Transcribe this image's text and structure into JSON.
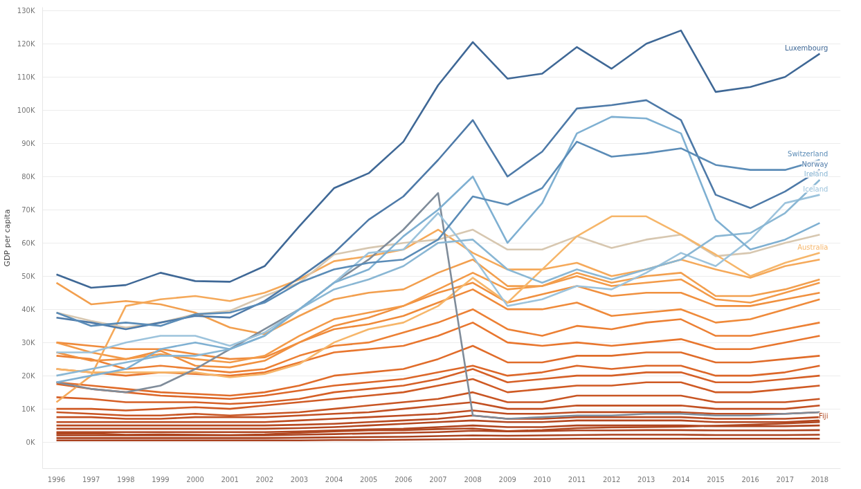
{
  "chart_data": {
    "type": "line",
    "ylabel": "GDP per capita",
    "grid": "y",
    "marker": "none",
    "line_style": "solid",
    "x": [
      1996,
      1997,
      1998,
      1999,
      2000,
      2001,
      2002,
      2003,
      2004,
      2005,
      2006,
      2007,
      2008,
      2009,
      2010,
      2011,
      2012,
      2013,
      2014,
      2015,
      2016,
      2017,
      2018
    ],
    "xlim": [
      1995.6,
      2018.6
    ],
    "xticks": [
      1996,
      1997,
      1998,
      1999,
      2000,
      2001,
      2002,
      2003,
      2004,
      2005,
      2006,
      2007,
      2008,
      2009,
      2010,
      2011,
      2012,
      2013,
      2014,
      2015,
      2016,
      2017,
      2018
    ],
    "ylim": [
      -8000,
      131000
    ],
    "yticks": [
      {
        "value": 0,
        "label": "0K"
      },
      {
        "value": 10000,
        "label": "10K"
      },
      {
        "value": 20000,
        "label": "20K"
      },
      {
        "value": 30000,
        "label": "30K"
      },
      {
        "value": 40000,
        "label": "40K"
      },
      {
        "value": 50000,
        "label": "50K"
      },
      {
        "value": 60000,
        "label": "60K"
      },
      {
        "value": 70000,
        "label": "70K"
      },
      {
        "value": 80000,
        "label": "80K"
      },
      {
        "value": 90000,
        "label": "90K"
      },
      {
        "value": 100000,
        "label": "100K"
      },
      {
        "value": 110000,
        "label": "110K"
      },
      {
        "value": 120000,
        "label": "120K"
      },
      {
        "value": 130000,
        "label": "130K"
      }
    ],
    "series": [
      {
        "color": "#a8401e",
        "values": [
          500,
          500,
          500,
          500,
          500,
          500,
          500,
          500,
          600,
          600,
          700,
          800,
          900,
          900,
          900,
          1000,
          1000,
          1000,
          1000,
          1000,
          1000,
          1000,
          1000
        ]
      },
      {
        "color": "#aa421e",
        "values": [
          1200,
          1200,
          1200,
          1200,
          1200,
          1200,
          1200,
          1300,
          1400,
          1500,
          1600,
          1800,
          2000,
          1900,
          2000,
          2100,
          2200,
          2200,
          2200,
          2100,
          2100,
          2100,
          2200
        ]
      },
      {
        "color": "#ad431f",
        "values": [
          2000,
          2000,
          2000,
          2000,
          2000,
          2000,
          2000,
          2200,
          2400,
          2600,
          2800,
          3000,
          3400,
          3200,
          3300,
          3500,
          3500,
          3600,
          3600,
          3500,
          3500,
          3500,
          3600
        ]
      },
      {
        "color": "#b0451f",
        "values": [
          3000,
          3000,
          3000,
          3000,
          3000,
          3000,
          3000,
          3200,
          3500,
          3800,
          4000,
          4500,
          5000,
          4500,
          4500,
          5000,
          5000,
          5000,
          5000,
          4800,
          4800,
          4800,
          5000
        ]
      },
      {
        "color": "#b34720",
        "values": [
          4000,
          4000,
          4000,
          4000,
          4000,
          4000,
          4000,
          4200,
          4500,
          5000,
          5500,
          6000,
          6500,
          6000,
          6000,
          6500,
          6500,
          6500,
          6500,
          6000,
          6000,
          6000,
          6500
        ]
      },
      {
        "color": "#b84a21",
        "values": [
          5000,
          5000,
          5000,
          5000,
          5000,
          5000,
          5000,
          5200,
          5500,
          6000,
          6500,
          7000,
          8000,
          7000,
          7000,
          7500,
          7500,
          7500,
          7500,
          7000,
          7000,
          7000,
          7500
        ]
      },
      {
        "color": "#bd4c21",
        "values": [
          6000,
          6000,
          6000,
          6000,
          6000,
          6000,
          6000,
          6500,
          7000,
          7500,
          8000,
          8500,
          9500,
          8500,
          8500,
          9000,
          9000,
          9000,
          9000,
          8500,
          8500,
          8500,
          9000
        ]
      },
      {
        "name": "Fiji",
        "color": "#b04720",
        "values": [
          2500,
          2600,
          2200,
          2300,
          2200,
          2100,
          2300,
          2800,
          3200,
          3500,
          3600,
          3900,
          4100,
          3300,
          3600,
          4200,
          4400,
          4500,
          4600,
          4900,
          5200,
          5600,
          6000
        ]
      },
      {
        "color": "#c25022",
        "values": [
          7500,
          7500,
          7000,
          7000,
          7500,
          7500,
          7500,
          8000,
          8500,
          9000,
          10000,
          11000,
          12000,
          10000,
          10000,
          11000,
          11000,
          11000,
          11000,
          10000,
          10000,
          10000,
          11000
        ]
      },
      {
        "color": "#c85523",
        "values": [
          9000,
          8500,
          8000,
          8000,
          8500,
          8000,
          8500,
          9000,
          10000,
          11000,
          12000,
          13000,
          15000,
          12000,
          12000,
          14000,
          14000,
          14000,
          14000,
          12000,
          12000,
          12000,
          13000
        ]
      },
      {
        "color": "#cf5a24",
        "values": [
          10000,
          10000,
          9500,
          10000,
          10500,
          10000,
          11000,
          12000,
          13000,
          14000,
          15000,
          17000,
          19000,
          15000,
          16000,
          17000,
          17000,
          18000,
          18000,
          15000,
          15000,
          16000,
          17000
        ]
      },
      {
        "color": "#d55f26",
        "values": [
          13500,
          13000,
          12000,
          12000,
          12000,
          11500,
          12000,
          13000,
          15000,
          16000,
          17000,
          19000,
          22000,
          18000,
          19000,
          20000,
          20000,
          21000,
          21000,
          18000,
          18000,
          19000,
          20000
        ]
      },
      {
        "color": "#dc6628",
        "values": [
          17500,
          16000,
          15000,
          14000,
          13500,
          13000,
          14000,
          15500,
          17000,
          18000,
          19000,
          21000,
          23000,
          20000,
          21000,
          23000,
          22000,
          23000,
          23000,
          20000,
          20000,
          21000,
          23000
        ]
      },
      {
        "color": "#e06c2a",
        "values": [
          18000,
          17000,
          16000,
          15000,
          14500,
          14000,
          15000,
          17000,
          20000,
          21000,
          22000,
          25000,
          29000,
          24000,
          24000,
          26000,
          26000,
          27000,
          27000,
          24000,
          24000,
          25000,
          26000
        ]
      },
      {
        "color": "#e8762e",
        "values": [
          22000,
          21000,
          20000,
          21000,
          20500,
          20000,
          21000,
          24000,
          27000,
          28000,
          29000,
          32000,
          36000,
          30000,
          29000,
          30000,
          29000,
          30000,
          31000,
          28000,
          28000,
          30000,
          32000
        ]
      },
      {
        "color": "#ec8034",
        "values": [
          26000,
          25000,
          22000,
          23000,
          22000,
          21000,
          22000,
          26000,
          29000,
          30000,
          33000,
          36000,
          40000,
          34000,
          32000,
          35000,
          34000,
          36000,
          37000,
          32000,
          32000,
          34000,
          36000
        ]
      },
      {
        "color": "#ef8a3a",
        "values": [
          30000,
          29000,
          28000,
          28000,
          26500,
          25000,
          25500,
          30000,
          34000,
          35500,
          38000,
          42000,
          46000,
          40000,
          40000,
          42000,
          38000,
          39000,
          40000,
          36000,
          37000,
          40000,
          43000
        ]
      },
      {
        "color": "#f0903f",
        "values": [
          27000,
          24500,
          25000,
          27500,
          23000,
          22500,
          24500,
          30000,
          35000,
          37500,
          41000,
          45000,
          48000,
          42000,
          44500,
          47000,
          44000,
          45000,
          45000,
          41000,
          41000,
          43000,
          45000
        ]
      },
      {
        "color": "#f39a48",
        "values": [
          30000,
          27000,
          25000,
          26500,
          25000,
          24000,
          26000,
          32000,
          37000,
          39000,
          41000,
          46000,
          51000,
          46000,
          47000,
          50000,
          47000,
          48000,
          49000,
          43000,
          42000,
          45000,
          48000
        ]
      },
      {
        "color": "#f29f4e",
        "values": [
          48000,
          41500,
          42500,
          41500,
          39000,
          34500,
          32500,
          38000,
          43000,
          45000,
          46000,
          51000,
          55000,
          47000,
          47000,
          51000,
          48000,
          50000,
          51000,
          44000,
          44000,
          46000,
          49000
        ]
      },
      {
        "color": "#f5a95a",
        "values": [
          12000,
          20000,
          41000,
          43000,
          44000,
          42500,
          45000,
          49000,
          54500,
          56000,
          58000,
          64000,
          57000,
          52000,
          52000,
          54000,
          50000,
          52000,
          55000,
          52000,
          49500,
          53000,
          55000
        ]
      },
      {
        "color": "#d7c7b0",
        "values": [
          39000,
          36500,
          34500,
          36000,
          38500,
          39500,
          44000,
          48000,
          56500,
          58500,
          60000,
          61000,
          64000,
          58000,
          58000,
          62000,
          58500,
          61000,
          62500,
          56000,
          57000,
          60000,
          62500
        ]
      },
      {
        "name": "Australia",
        "color": "#f6b66a",
        "values": [
          22000,
          21000,
          21000,
          21000,
          21000,
          19500,
          20500,
          23500,
          30000,
          34000,
          36000,
          41000,
          49500,
          42000,
          52000,
          62000,
          68000,
          68000,
          62500,
          56500,
          50000,
          54000,
          57000
        ]
      },
      {
        "color": "#7f8c9a",
        "values": [
          18000,
          16000,
          15000,
          17000,
          22000,
          28000,
          34000,
          40000,
          48000,
          55000,
          64000,
          75000,
          8000,
          7000,
          7500,
          8000,
          8000,
          8500,
          8500,
          8000,
          8000,
          8500,
          9000
        ]
      },
      {
        "name": "Iceland",
        "color": "#9cc3dc",
        "values": [
          27000,
          27000,
          30000,
          32000,
          32000,
          29000,
          33000,
          40000,
          48000,
          57000,
          58000,
          69000,
          56000,
          41000,
          43000,
          47000,
          46000,
          51000,
          57000,
          53000,
          61000,
          72000,
          74500
        ]
      },
      {
        "name": "Ireland",
        "color": "#8ab7d4",
        "values": [
          20000,
          22000,
          24000,
          26000,
          26000,
          28000,
          32000,
          40000,
          46000,
          49000,
          53000,
          60000,
          61000,
          52000,
          48000,
          52000,
          49000,
          52000,
          55000,
          62000,
          63000,
          69000,
          79000
        ]
      },
      {
        "color": "#7fb0d2",
        "values": [
          18000,
          20000,
          22000,
          28000,
          30000,
          28000,
          32000,
          40000,
          48000,
          52000,
          62000,
          70000,
          80000,
          60000,
          72000,
          93000,
          98000,
          97500,
          93000,
          67000,
          58000,
          61000,
          66000
        ]
      },
      {
        "name": "Norway",
        "color": "#4e7aa8",
        "values": [
          37500,
          36000,
          34000,
          36000,
          38000,
          37500,
          42500,
          49500,
          57000,
          67000,
          74000,
          85000,
          97000,
          80000,
          87500,
          100500,
          101500,
          103000,
          97000,
          74500,
          70500,
          75500,
          82000
        ]
      },
      {
        "name": "Switzerland",
        "color": "#5b8cb7",
        "values": [
          39000,
          35000,
          36000,
          35000,
          38500,
          39000,
          42000,
          48000,
          52000,
          54000,
          55000,
          61000,
          74000,
          71500,
          76500,
          90500,
          86000,
          87000,
          88500,
          83500,
          82000,
          82000,
          85000
        ]
      },
      {
        "name": "Luxembourg",
        "color": "#3f6896",
        "values": [
          50500,
          46500,
          47300,
          51000,
          48500,
          48300,
          53000,
          65000,
          76500,
          81000,
          90500,
          107500,
          120500,
          109500,
          111000,
          119000,
          112500,
          120000,
          124000,
          105500,
          107000,
          110000,
          117000
        ]
      }
    ]
  }
}
